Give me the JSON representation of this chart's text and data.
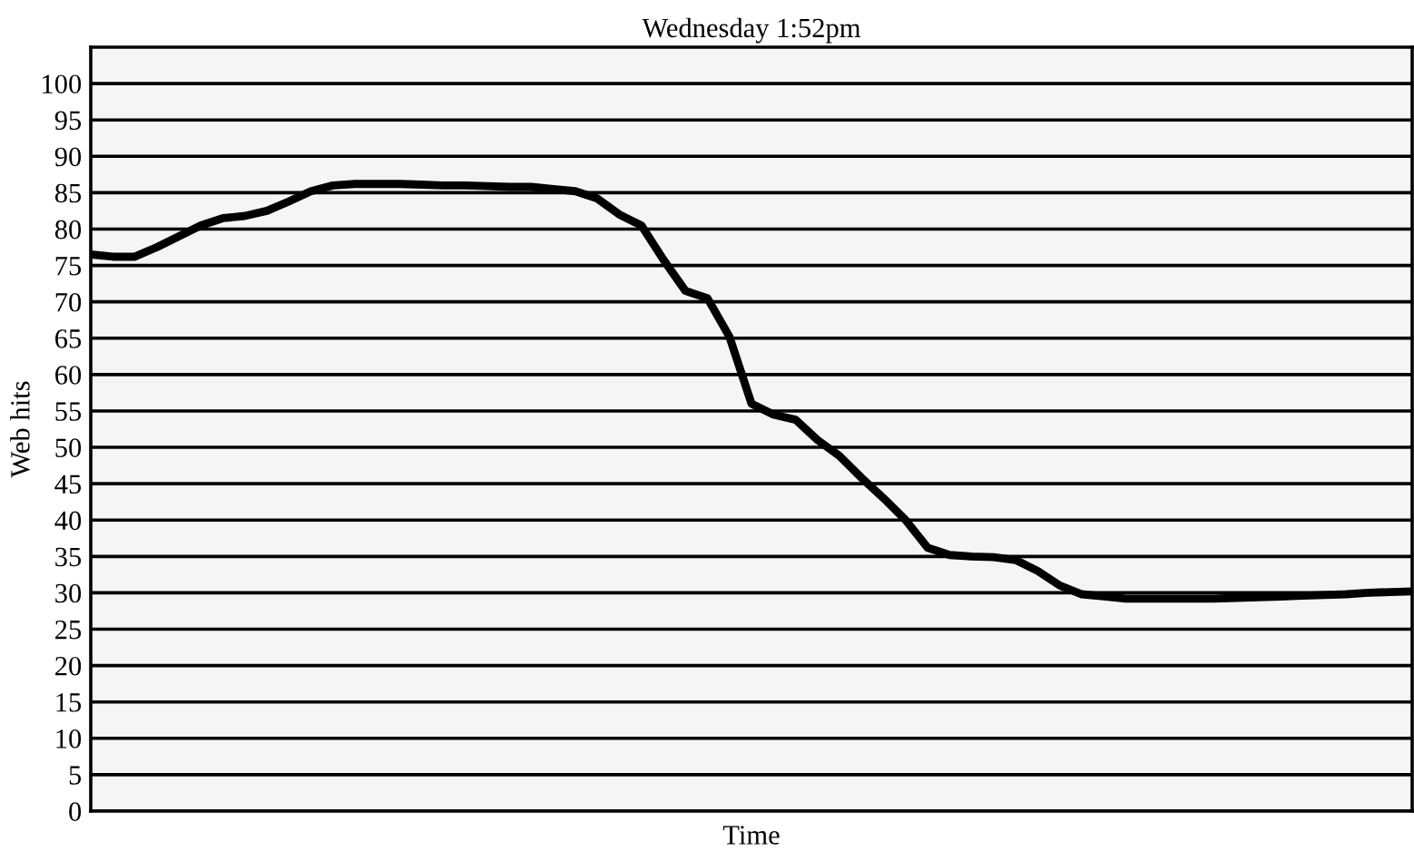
{
  "chart_data": {
    "type": "line",
    "title": "Wednesday 1:52pm",
    "xlabel": "Time",
    "ylabel": "Web hits",
    "categories": [
      null,
      null,
      null,
      null,
      null,
      null,
      null,
      null,
      null,
      null,
      null,
      null,
      null,
      null,
      null,
      null,
      null,
      null,
      null,
      null,
      null,
      null,
      null,
      null,
      null,
      null,
      null,
      null,
      null,
      null,
      null,
      null,
      null,
      null,
      null,
      null,
      null,
      null,
      null,
      null,
      null,
      null,
      null,
      null,
      null,
      null,
      null,
      null,
      null,
      null,
      null,
      null,
      null,
      null,
      null,
      null,
      null,
      null,
      null,
      null,
      null
    ],
    "series": [
      {
        "color": "#000000",
        "values": [
          76.5,
          76.2,
          76.2,
          77.5,
          79.0,
          80.5,
          81.5,
          81.8,
          82.5,
          83.8,
          85.2,
          86.0,
          86.2,
          86.2,
          86.2,
          86.1,
          86.0,
          86.0,
          85.9,
          85.8,
          85.8,
          85.5,
          85.2,
          84.2,
          82.0,
          80.5,
          75.8,
          71.5,
          70.5,
          65.2,
          56.0,
          54.5,
          53.8,
          51.0,
          48.8,
          45.8,
          43.0,
          40.0,
          36.2,
          35.2,
          35.0,
          34.9,
          34.5,
          33.0,
          31.0,
          29.8,
          29.5,
          29.2,
          29.2,
          29.2,
          29.2,
          29.2,
          29.3,
          29.4,
          29.5,
          29.6,
          29.7,
          29.8,
          30.0,
          30.1,
          30.2
        ]
      }
    ],
    "ylim": [
      0,
      105
    ],
    "yticks": [
      0,
      5,
      10,
      15,
      20,
      25,
      30,
      35,
      40,
      45,
      50,
      55,
      60,
      65,
      70,
      75,
      80,
      85,
      90,
      95,
      100
    ],
    "grid": "y",
    "marker": "none",
    "line_style": "solid",
    "legend": false
  }
}
